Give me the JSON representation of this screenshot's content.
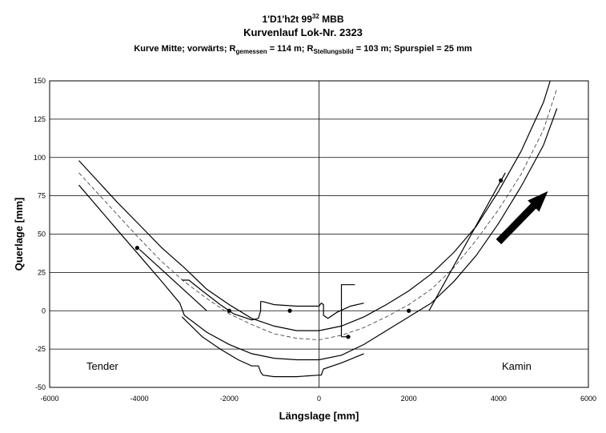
{
  "chart_data": {
    "type": "line",
    "title": "1'D1'h2t 99³² MBB",
    "title_main": "1'D1'h2t 99",
    "title_sup": "32",
    "title_suffix": "MBB",
    "subtitle": "Kurvenlauf Lok-Nr. 2323",
    "caption": {
      "p1": "Kurve Mitte; vorwärts; R",
      "sub1": "gemessen",
      "p2": " = 114 m; R",
      "sub2": "Stellungsbild",
      "p3": " = 103 m; Spurspiel = 25 mm"
    },
    "xlabel": "Längslage [mm]",
    "ylabel": "Querlage [mm]",
    "xlim": [
      -6000,
      6000
    ],
    "ylim": [
      -50,
      150
    ],
    "xticks": [
      -6000,
      -4000,
      -2000,
      0,
      2000,
      4000,
      6000
    ],
    "yticks": [
      -50,
      -25,
      0,
      25,
      50,
      75,
      100,
      125,
      150
    ],
    "grid": "horizontal",
    "annotations": {
      "left": "Tender",
      "right": "Kamin"
    },
    "arrow": {
      "from": [
        4000,
        45
      ],
      "to": [
        5100,
        78
      ]
    },
    "series": [
      {
        "style": "outer-rail",
        "x": [
          -5350,
          -4500,
          -4000,
          -3500,
          -3000,
          -2500,
          -2000,
          -1500,
          -1000,
          -500,
          0,
          500,
          1000,
          1500,
          2000,
          2500,
          3000,
          3500,
          4000,
          4500,
          5000,
          5150
        ],
        "y": [
          98,
          71,
          56,
          41,
          28,
          14,
          4,
          -5,
          -10,
          -13,
          -13,
          -10,
          -4,
          4,
          13,
          24,
          38,
          55,
          78,
          104,
          136,
          150
        ]
      },
      {
        "style": "centerline-dashed",
        "x": [
          -5350,
          -4500,
          -4000,
          -3500,
          -3000,
          -2500,
          -2000,
          -1500,
          -1000,
          -500,
          0,
          500,
          1000,
          1500,
          2000,
          2500,
          3000,
          3500,
          4000,
          4500,
          5000,
          5300
        ],
        "y": [
          90,
          63,
          47,
          32,
          19,
          8,
          -2,
          -9,
          -15,
          -18,
          -19,
          -16,
          -11,
          -4,
          4,
          14,
          28,
          46,
          66,
          89,
          118,
          145
        ]
      },
      {
        "style": "inner-rail",
        "x": [
          -5350,
          -4500,
          -4000,
          -3500,
          -3100,
          -3000,
          -2500,
          -2000,
          -1500,
          -1000,
          -500,
          0,
          500,
          1000,
          1500,
          2000,
          2500,
          3000,
          3500,
          4000,
          4500,
          5000,
          5300
        ],
        "y": [
          82,
          53,
          36,
          19,
          5,
          -3,
          -14,
          -22,
          -28,
          -31,
          -32,
          -32,
          -29,
          -22,
          -13,
          -4,
          5,
          19,
          36,
          57,
          81,
          108,
          132
        ]
      },
      {
        "style": "loco-outline",
        "x": [
          -3050,
          -2900,
          -2600,
          -2200,
          -1900,
          -1500,
          -1350,
          -1300,
          -1300,
          -1250,
          -1000,
          -500,
          0,
          50,
          100,
          100,
          200,
          400,
          700,
          1000
        ],
        "y": [
          20,
          20,
          13,
          4,
          -2,
          -6,
          -5,
          0,
          6,
          6,
          4,
          3,
          3,
          5,
          4,
          -3,
          -5,
          -1,
          3,
          5
        ]
      },
      {
        "style": "loco-outline-lower",
        "x": [
          -3050,
          -2600,
          -2200,
          -1800,
          -1500,
          -1350,
          -1300,
          -1250,
          -1000,
          -500,
          0,
          50,
          100,
          500,
          1000
        ],
        "y": [
          -4,
          -17,
          -25,
          -32,
          -36,
          -36,
          -40,
          -42,
          -43,
          -43,
          -42,
          -42,
          -38,
          -34,
          -28
        ]
      },
      {
        "style": "axle-line",
        "x": [
          -4000,
          -2500
        ],
        "y": [
          40,
          0
        ]
      },
      {
        "style": "axle-line",
        "x": [
          2450,
          4150
        ],
        "y": [
          0,
          90
        ]
      },
      {
        "style": "axle-bracket",
        "x": [
          500,
          500,
          800
        ],
        "y": [
          -17,
          17,
          17
        ]
      },
      {
        "style": "axle-bracket",
        "x": [
          500,
          700
        ],
        "y": [
          -17,
          -17
        ]
      }
    ],
    "points": {
      "x": [
        -4050,
        -2000,
        -650,
        650,
        2000,
        4050
      ],
      "y": [
        41,
        0,
        0,
        -17,
        0,
        85
      ]
    }
  }
}
